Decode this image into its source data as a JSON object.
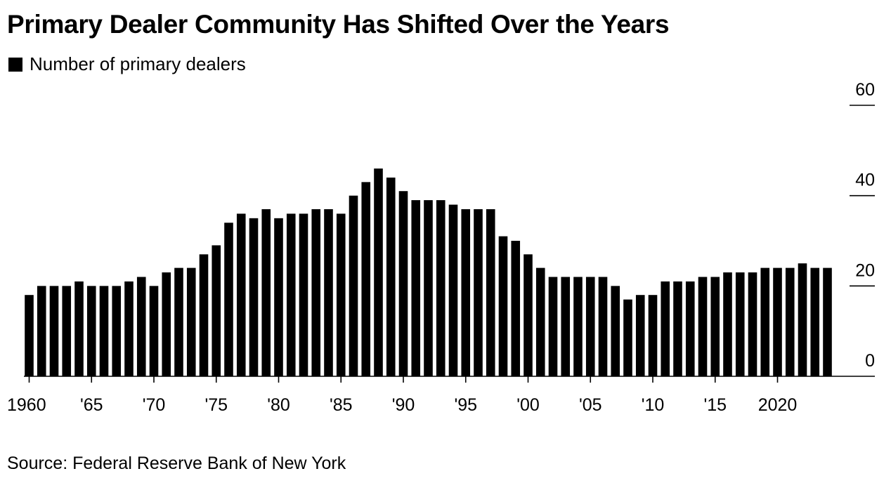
{
  "chart_data": {
    "type": "bar",
    "title": "Primary Dealer Community Has Shifted Over the Years",
    "legend": [
      "Number of primary dealers"
    ],
    "source": "Source: Federal Reserve Bank of New York",
    "x": [
      1960,
      1961,
      1962,
      1963,
      1964,
      1965,
      1966,
      1967,
      1968,
      1969,
      1970,
      1971,
      1972,
      1973,
      1974,
      1975,
      1976,
      1977,
      1978,
      1979,
      1980,
      1981,
      1982,
      1983,
      1984,
      1985,
      1986,
      1987,
      1988,
      1989,
      1990,
      1991,
      1992,
      1993,
      1994,
      1995,
      1996,
      1997,
      1998,
      1999,
      2000,
      2001,
      2002,
      2003,
      2004,
      2005,
      2006,
      2007,
      2008,
      2009,
      2010,
      2011,
      2012,
      2013,
      2014,
      2015,
      2016,
      2017,
      2018,
      2019,
      2020,
      2021,
      2022,
      2023,
      2024
    ],
    "values": [
      18,
      20,
      20,
      20,
      21,
      20,
      20,
      20,
      21,
      22,
      20,
      23,
      24,
      24,
      27,
      29,
      34,
      36,
      35,
      37,
      35,
      36,
      36,
      37,
      37,
      36,
      40,
      43,
      46,
      44,
      41,
      39,
      39,
      39,
      38,
      37,
      37,
      37,
      31,
      30,
      27,
      24,
      22,
      22,
      22,
      22,
      22,
      20,
      17,
      18,
      18,
      21,
      21,
      21,
      22,
      22,
      23,
      23,
      23,
      24,
      24,
      24,
      25,
      24,
      24
    ],
    "x_tick_labels": [
      {
        "year": 1960,
        "label": "1960"
      },
      {
        "year": 1965,
        "label": "'65"
      },
      {
        "year": 1970,
        "label": "'70"
      },
      {
        "year": 1975,
        "label": "'75"
      },
      {
        "year": 1980,
        "label": "'80"
      },
      {
        "year": 1985,
        "label": "'85"
      },
      {
        "year": 1990,
        "label": "'90"
      },
      {
        "year": 1995,
        "label": "'95"
      },
      {
        "year": 2000,
        "label": "'00"
      },
      {
        "year": 2005,
        "label": "'05"
      },
      {
        "year": 2010,
        "label": "'10"
      },
      {
        "year": 2015,
        "label": "'15"
      },
      {
        "year": 2020,
        "label": "2020"
      }
    ],
    "y_ticks": [
      0,
      20,
      40,
      60
    ],
    "ylim": [
      0,
      60
    ],
    "y_axis_side": "right",
    "bar_color": "#000000"
  }
}
